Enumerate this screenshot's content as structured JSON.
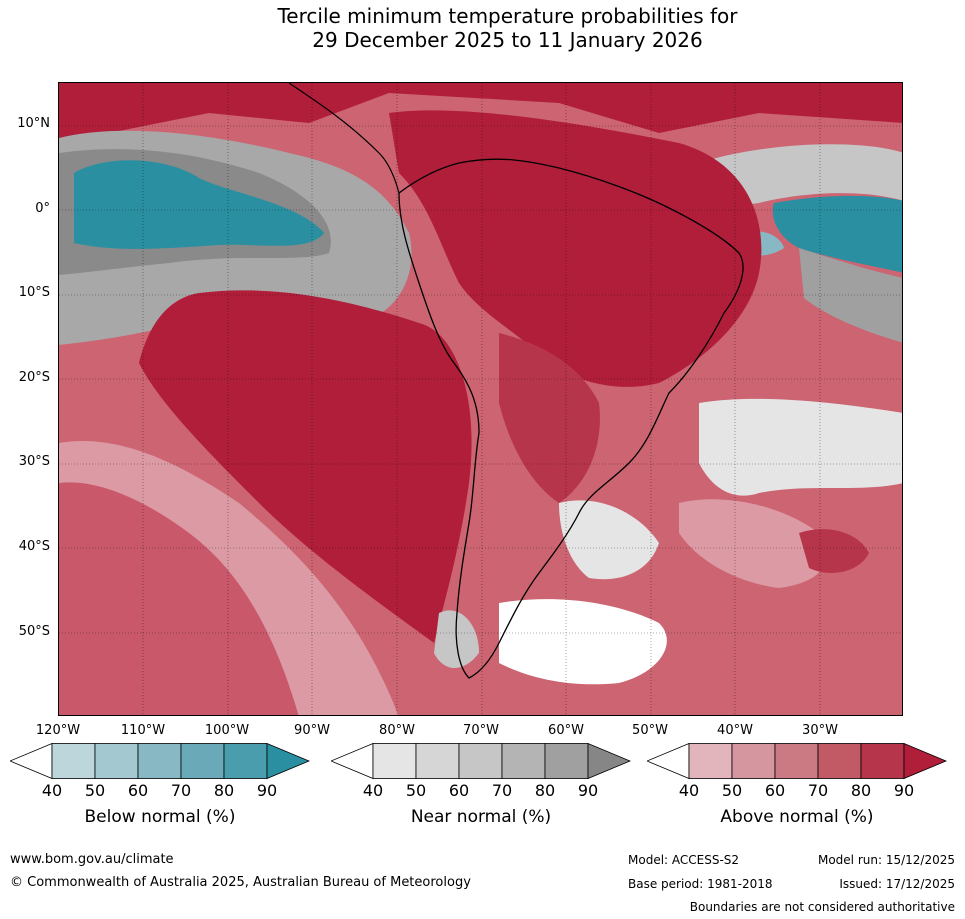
{
  "title": {
    "line1": "Tercile minimum temperature probabilities for",
    "line2": "29 December 2025 to 11 January 2026"
  },
  "map": {
    "lat_labels": [
      "10°N",
      "0°",
      "10°S",
      "20°S",
      "30°S",
      "40°S",
      "50°S"
    ],
    "lon_labels": [
      "120°W",
      "110°W",
      "100°W",
      "90°W",
      "80°W",
      "70°W",
      "60°W",
      "50°W",
      "40°W",
      "30°W"
    ]
  },
  "legends": [
    {
      "title": "Below normal (%)",
      "ticks": [
        "40",
        "50",
        "60",
        "70",
        "80",
        "90"
      ],
      "colors": [
        "#ffffff",
        "#bcd6dc",
        "#a4c8d0",
        "#88b8c3",
        "#6aa9b7",
        "#4a9dad",
        "#2a8fa0"
      ]
    },
    {
      "title": "Near normal (%)",
      "ticks": [
        "40",
        "50",
        "60",
        "70",
        "80",
        "90"
      ],
      "colors": [
        "#ffffff",
        "#e5e5e5",
        "#d6d6d6",
        "#c6c6c6",
        "#b4b4b4",
        "#a0a0a0",
        "#868686"
      ]
    },
    {
      "title": "Above normal (%)",
      "ticks": [
        "40",
        "50",
        "60",
        "70",
        "80",
        "90"
      ],
      "colors": [
        "#ffffff",
        "#e2b4bb",
        "#d6969f",
        "#cb7983",
        "#c25a66",
        "#b7354a",
        "#b01e3a"
      ]
    }
  ],
  "footer": {
    "url": "www.bom.gov.au/climate",
    "copyright": "© Commonwealth of Australia 2025, Australian Bureau of Meteorology",
    "model": "Model: ACCESS-S2",
    "base_period": "Base period: 1981-2018",
    "model_run": "Model run: 15/12/2025",
    "issued": "Issued: 17/12/2025",
    "boundaries": "Boundaries are not considered authoritative"
  },
  "colors": {
    "above_strong": "#b01e3a",
    "above_mid": "#c8586a",
    "above_light": "#dc9aa5",
    "near": "#8a8a8a",
    "near_light": "#cfcfcf",
    "below": "#2a8fa0",
    "below_light": "#9cc3cc"
  }
}
